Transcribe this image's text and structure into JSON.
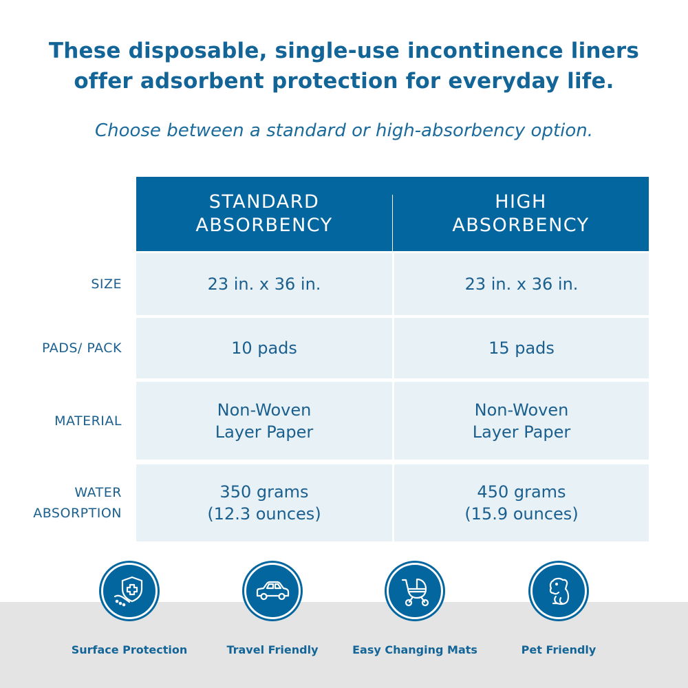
{
  "headline": {
    "line1": "These disposable, single-use incontinence liners",
    "line2": "offer adsorbent protection for everyday life."
  },
  "subhead": "Choose between a standard or high-absorbency option.",
  "table": {
    "columns": [
      {
        "line1": "STANDARD",
        "line2": "ABSORBENCY"
      },
      {
        "line1": "HIGH",
        "line2": "ABSORBENCY"
      }
    ],
    "rows": [
      {
        "label": [
          "SIZE"
        ],
        "standard": [
          "23 in. x 36 in."
        ],
        "high": [
          "23 in. x 36 in."
        ]
      },
      {
        "label": [
          "PADS/ PACK"
        ],
        "standard": [
          "10 pads"
        ],
        "high": [
          "15 pads"
        ]
      },
      {
        "label": [
          "MATERIAL"
        ],
        "standard": [
          "Non-Woven",
          "Layer Paper"
        ],
        "high": [
          "Non-Woven",
          "Layer Paper"
        ]
      },
      {
        "label": [
          "WATER",
          "ABSORPTION"
        ],
        "standard": [
          "350 grams",
          "(12.3 ounces)"
        ],
        "high": [
          "450 grams",
          "(15.9 ounces)"
        ]
      }
    ]
  },
  "features": [
    {
      "label": "Surface Protection",
      "icon": "shield-cross-icon"
    },
    {
      "label": "Travel Friendly",
      "icon": "car-icon"
    },
    {
      "label": "Easy Changing Mats",
      "icon": "stroller-icon"
    },
    {
      "label": "Pet Friendly",
      "icon": "dog-icon"
    }
  ],
  "colors": {
    "brand_blue": "#04669f",
    "text_blue": "#146597",
    "row_bg": "#e8f1f5",
    "band_gray": "#e4e4e4"
  }
}
